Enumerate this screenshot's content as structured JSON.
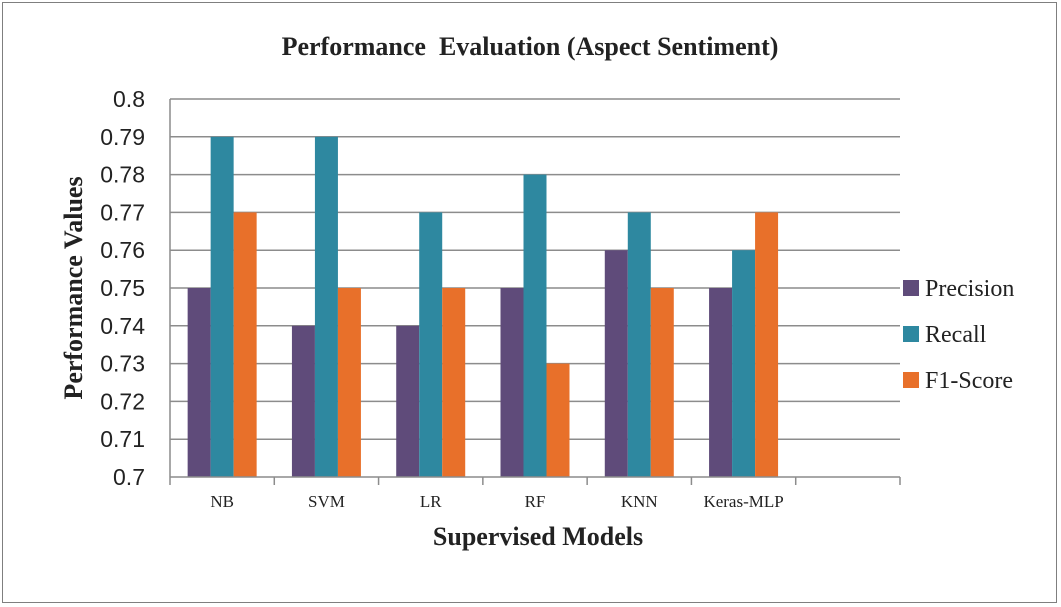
{
  "chart_data": {
    "type": "bar",
    "title": "Performance  Evaluation (Aspect Sentiment)",
    "xlabel": "Supervised Models",
    "ylabel": "Performance Values",
    "categories": [
      "NB",
      "SVM",
      "LR",
      "RF",
      "KNN",
      "Keras-MLP"
    ],
    "series": [
      {
        "name": "Precision",
        "color": "#5f4b7a",
        "values": [
          0.75,
          0.74,
          0.74,
          0.75,
          0.76,
          0.75
        ]
      },
      {
        "name": "Recall",
        "color": "#2e88a0",
        "values": [
          0.79,
          0.79,
          0.77,
          0.78,
          0.77,
          0.76
        ]
      },
      {
        "name": "F1-Score",
        "color": "#e8702a",
        "values": [
          0.77,
          0.75,
          0.75,
          0.73,
          0.75,
          0.77
        ]
      }
    ],
    "ylim": [
      0.7,
      0.8
    ],
    "yticks": [
      "0.7",
      "0.71",
      "0.72",
      "0.73",
      "0.74",
      "0.75",
      "0.76",
      "0.77",
      "0.78",
      "0.79",
      "0.8"
    ],
    "grid": true,
    "legend_position": "right"
  }
}
